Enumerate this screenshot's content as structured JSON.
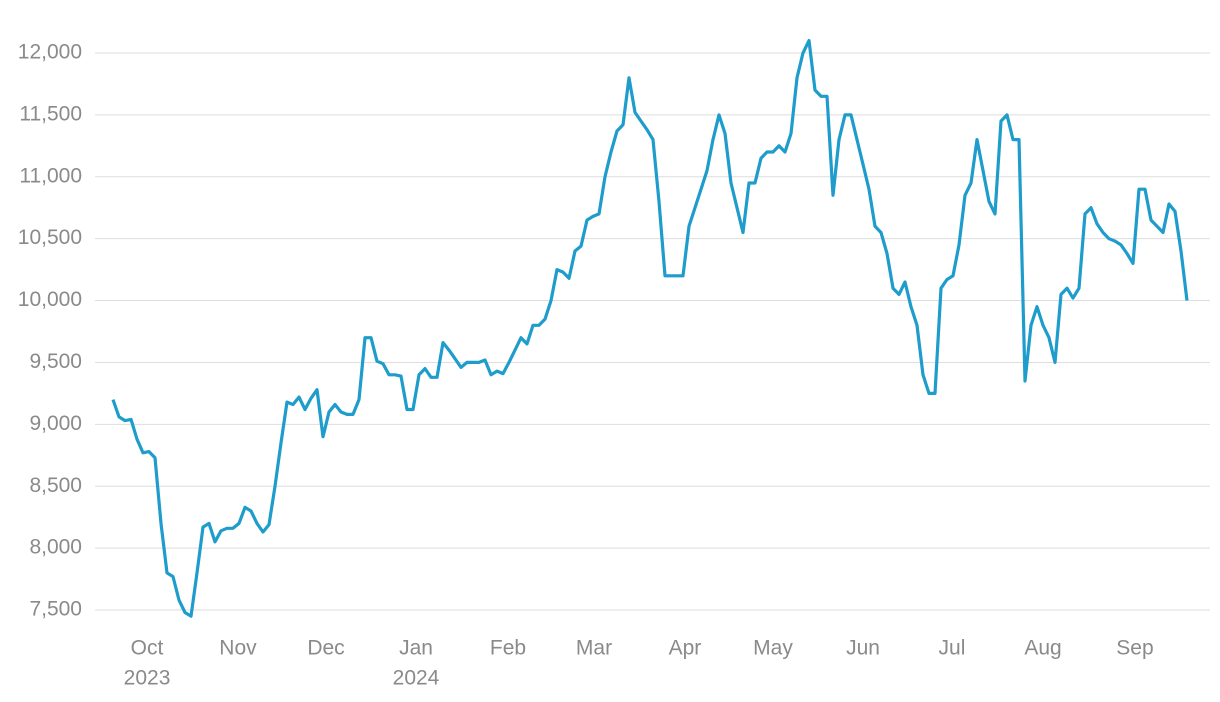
{
  "chart_data": {
    "type": "line",
    "color": "#1e9ccb",
    "grid": true,
    "xlim": [
      0,
      179
    ],
    "ylim": [
      7500,
      12000
    ],
    "yticks": [
      {
        "value": 7500,
        "label": "7,500"
      },
      {
        "value": 8000,
        "label": "8,000"
      },
      {
        "value": 8500,
        "label": "8,500"
      },
      {
        "value": 9000,
        "label": "9,000"
      },
      {
        "value": 9500,
        "label": "9,500"
      },
      {
        "value": 10000,
        "label": "10,000"
      },
      {
        "value": 10500,
        "label": "10,500"
      },
      {
        "value": 11000,
        "label": "11,000"
      },
      {
        "value": 11500,
        "label": "11,500"
      },
      {
        "value": 12000,
        "label": "12,000"
      }
    ],
    "xticks": [
      {
        "value": 5.67,
        "label": "Oct"
      },
      {
        "value": 20.83,
        "label": "Nov"
      },
      {
        "value": 35.5,
        "label": "Dec"
      },
      {
        "value": 50.5,
        "label": "Jan"
      },
      {
        "value": 65.83,
        "label": "Feb"
      },
      {
        "value": 80.17,
        "label": "Mar"
      },
      {
        "value": 95.33,
        "label": "Apr"
      },
      {
        "value": 110,
        "label": "May"
      },
      {
        "value": 125,
        "label": "Jun"
      },
      {
        "value": 139.83,
        "label": "Jul"
      },
      {
        "value": 155,
        "label": "Aug"
      },
      {
        "value": 170.33,
        "label": "Sep"
      }
    ],
    "year_labels": [
      {
        "value": 5.67,
        "label": "2023"
      },
      {
        "value": 50.5,
        "label": "2024"
      }
    ],
    "values": [
      9200,
      9060,
      9030,
      9040,
      8880,
      8770,
      8780,
      8730,
      8200,
      7800,
      7770,
      7580,
      7480,
      7450,
      7800,
      8170,
      8200,
      8050,
      8140,
      8160,
      8160,
      8200,
      8330,
      8300,
      8200,
      8130,
      8190,
      8500,
      8850,
      9180,
      9160,
      9220,
      9120,
      9210,
      9280,
      8900,
      9100,
      9160,
      9100,
      9080,
      9080,
      9200,
      9700,
      9700,
      9510,
      9490,
      9400,
      9400,
      9390,
      9120,
      9120,
      9400,
      9450,
      9380,
      9380,
      9660,
      9600,
      9530,
      9460,
      9500,
      9500,
      9500,
      9520,
      9400,
      9430,
      9410,
      9500,
      9600,
      9700,
      9650,
      9800,
      9800,
      9850,
      10000,
      10250,
      10230,
      10180,
      10400,
      10440,
      10650,
      10680,
      10700,
      11000,
      11200,
      11370,
      11420,
      11800,
      11520,
      11450,
      11380,
      11300,
      10800,
      10200,
      10200,
      10200,
      10200,
      10600,
      10750,
      10900,
      11050,
      11300,
      11500,
      11350,
      10950,
      10750,
      10550,
      10950,
      10950,
      11150,
      11200,
      11200,
      11250,
      11200,
      11350,
      11800,
      12000,
      12100,
      11700,
      11650,
      11650,
      10850,
      11300,
      11500,
      11500,
      11300,
      11100,
      10900,
      10600,
      10550,
      10380,
      10100,
      10050,
      10150,
      9950,
      9800,
      9400,
      9250,
      9250,
      10100,
      10170,
      10200,
      10450,
      10850,
      10950,
      11300,
      11050,
      10800,
      10700,
      11450,
      11500,
      11300,
      11300,
      9350,
      9800,
      9950,
      9800,
      9700,
      9500,
      10050,
      10100,
      10020,
      10100,
      10700,
      10750,
      10620,
      10550,
      10500,
      10480,
      10450,
      10380,
      10300,
      10900,
      10900,
      10650,
      10600,
      10550,
      10780,
      10720,
      10400,
      10000
    ]
  }
}
